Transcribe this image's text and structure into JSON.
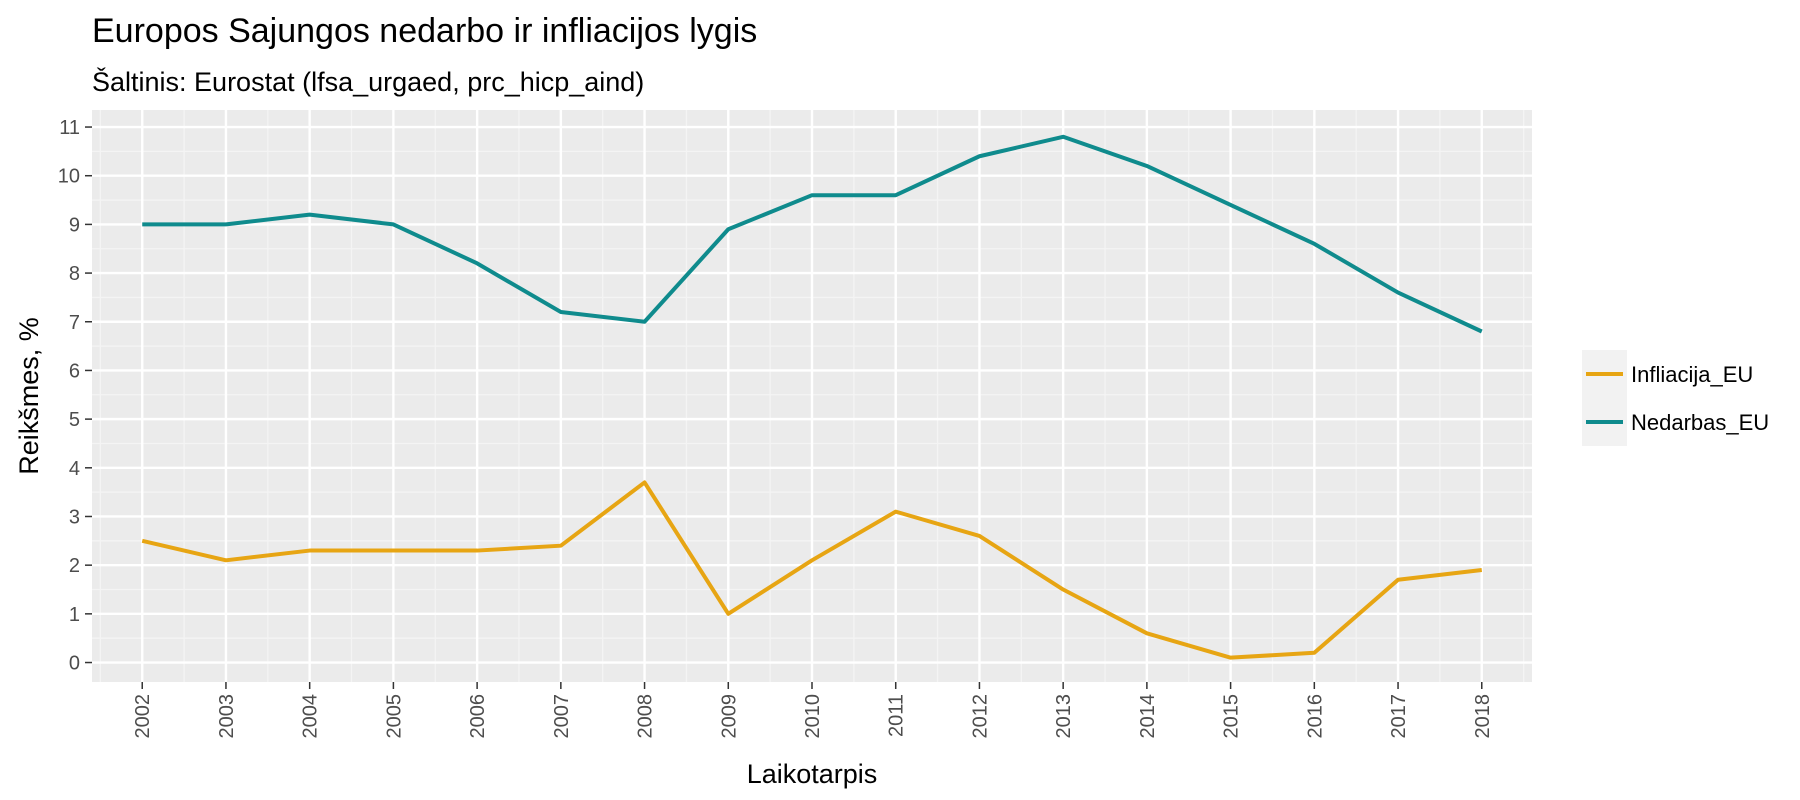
{
  "chart_data": {
    "type": "line",
    "title": "Europos Sajungos nedarbo ir infliacijos lygis",
    "subtitle": "Šaltinis: Eurostat (lfsa_urgaed, prc_hicp_aind)",
    "xlabel": "Laikotarpis",
    "ylabel": "Reikšmes, %",
    "x": [
      "2002",
      "2003",
      "2004",
      "2005",
      "2006",
      "2007",
      "2008",
      "2009",
      "2010",
      "2011",
      "2012",
      "2013",
      "2014",
      "2015",
      "2016",
      "2017",
      "2018"
    ],
    "yticks": [
      0,
      1,
      2,
      3,
      4,
      5,
      6,
      7,
      8,
      9,
      10,
      11
    ],
    "ylim": [
      -0.4,
      11.35
    ],
    "grid": true,
    "legend_position": "right",
    "series": [
      {
        "name": "Infliacija_EU",
        "color": "#e7a513",
        "values": [
          2.5,
          2.1,
          2.3,
          2.3,
          2.3,
          2.4,
          3.7,
          1.0,
          2.1,
          3.1,
          2.6,
          1.5,
          0.6,
          0.1,
          0.2,
          1.7,
          1.9
        ]
      },
      {
        "name": "Nedarbas_EU",
        "color": "#0f8b8d",
        "values": [
          9.0,
          9.0,
          9.2,
          9.0,
          8.2,
          7.2,
          7.0,
          8.9,
          9.6,
          9.6,
          10.4,
          10.8,
          10.2,
          9.4,
          8.6,
          7.6,
          6.8
        ]
      }
    ]
  }
}
